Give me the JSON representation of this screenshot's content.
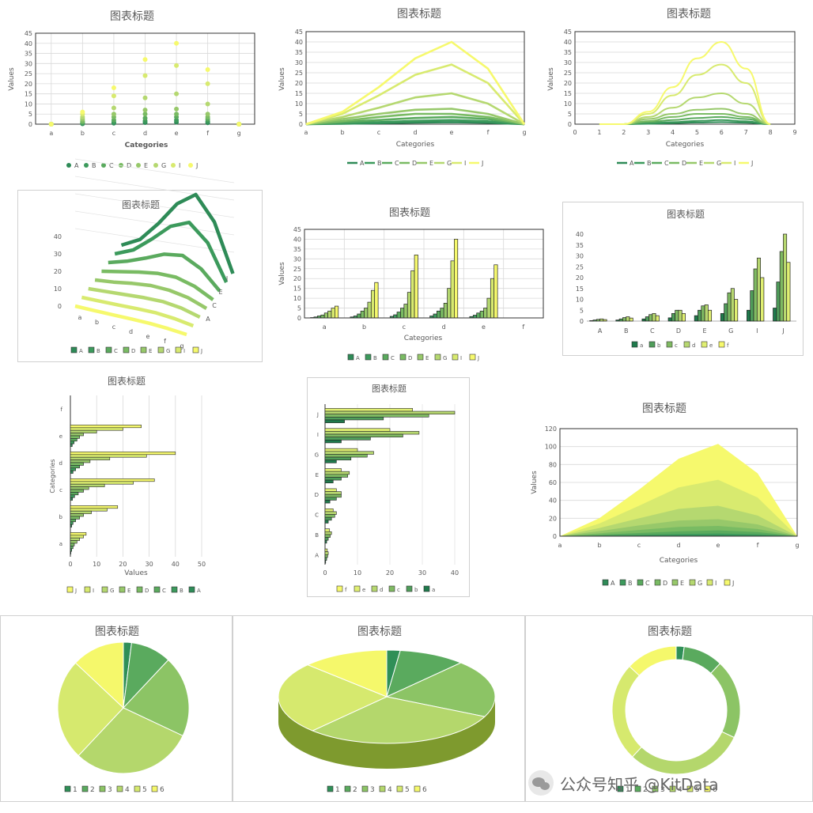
{
  "palette": [
    "#2e8b57",
    "#3c9a5c",
    "#5aaa5e",
    "#79bb63",
    "#97c86a",
    "#b5d870",
    "#d8ea6f",
    "#f6f96d"
  ],
  "pie_palette": [
    "#2f8f57",
    "#5aaa5e",
    "#8cc465",
    "#b4d76c",
    "#d6e96e",
    "#f5f86b"
  ],
  "chart_data": [
    {
      "id": "scatter",
      "type": "scatter",
      "title": "图表标题",
      "xlabel": "Categories",
      "ylabel": "Values",
      "categories": [
        "a",
        "b",
        "c",
        "d",
        "e",
        "f",
        "g"
      ],
      "ylim": [
        0,
        45
      ],
      "yticks": [
        0,
        5,
        10,
        15,
        20,
        25,
        30,
        35,
        40,
        45
      ],
      "legend": [
        "A",
        "B",
        "C",
        "D",
        "E",
        "G",
        "I",
        "J"
      ],
      "series": [
        [
          0,
          0.2,
          0.5,
          0.8,
          1,
          0.7,
          0
        ],
        [
          0,
          0.5,
          1,
          1.6,
          2,
          1.4,
          0
        ],
        [
          0,
          1,
          2,
          3,
          3.5,
          2.5,
          0
        ],
        [
          0,
          1.5,
          3.5,
          5,
          5,
          3.5,
          0
        ],
        [
          0,
          2.5,
          5,
          7,
          7.5,
          5,
          0
        ],
        [
          0,
          3.5,
          8,
          13,
          15,
          10,
          0
        ],
        [
          0,
          5,
          14,
          24,
          29,
          20,
          0
        ],
        [
          0,
          6,
          18,
          32,
          40,
          27,
          0
        ]
      ]
    },
    {
      "id": "line",
      "type": "line",
      "title": "图表标题",
      "xlabel": "Categories",
      "ylabel": "Values",
      "categories": [
        "a",
        "b",
        "c",
        "d",
        "e",
        "f",
        "g"
      ],
      "ylim": [
        0,
        45
      ],
      "yticks": [
        0,
        5,
        10,
        15,
        20,
        25,
        30,
        35,
        40,
        45
      ],
      "legend": [
        "A",
        "B",
        "C",
        "D",
        "E",
        "G",
        "I",
        "J"
      ],
      "series": [
        [
          0,
          0.2,
          0.5,
          0.8,
          1,
          0.7,
          0
        ],
        [
          0,
          0.5,
          1,
          1.6,
          2,
          1.4,
          0
        ],
        [
          0,
          1,
          2,
          3,
          3.5,
          2.5,
          0
        ],
        [
          0,
          1.5,
          3.5,
          5,
          5,
          3.5,
          0
        ],
        [
          0,
          2.5,
          5,
          7,
          7.5,
          5,
          0
        ],
        [
          0,
          3.5,
          8,
          13,
          15,
          10,
          0
        ],
        [
          0,
          5,
          14,
          24,
          29,
          20,
          0
        ],
        [
          0,
          6,
          18,
          32,
          40,
          27,
          0
        ]
      ]
    },
    {
      "id": "smooth",
      "type": "line",
      "title": "图表标题",
      "xlabel": "Categories",
      "ylabel": "Values",
      "x": [
        1,
        2,
        3,
        4,
        5,
        6,
        7,
        8
      ],
      "xticks": [
        "0",
        "1",
        "2",
        "3",
        "4",
        "5",
        "6",
        "7",
        "8",
        "9"
      ],
      "xlim": [
        0,
        9
      ],
      "ylim": [
        0,
        45
      ],
      "yticks": [
        0,
        5,
        10,
        15,
        20,
        25,
        30,
        35,
        40,
        45
      ],
      "legend": [
        "A",
        "B",
        "C",
        "D",
        "E",
        "G",
        "I",
        "J"
      ],
      "series": [
        [
          0,
          0,
          0.2,
          0.5,
          0.8,
          1,
          0.7,
          0
        ],
        [
          0,
          0,
          0.5,
          1,
          1.6,
          2,
          1.4,
          0
        ],
        [
          0,
          0,
          1,
          2,
          3,
          3.5,
          2.5,
          0
        ],
        [
          0,
          0,
          1.5,
          3.5,
          5,
          5,
          3.5,
          0
        ],
        [
          0,
          0,
          2.5,
          5,
          7,
          7.5,
          5,
          0
        ],
        [
          0,
          0,
          3.5,
          8,
          13,
          15,
          10,
          0
        ],
        [
          0,
          0,
          5,
          14,
          24,
          29,
          20,
          0
        ],
        [
          0,
          0,
          6,
          18,
          32,
          40,
          27,
          0
        ]
      ]
    },
    {
      "id": "line3d",
      "type": "line",
      "title": "图表标题",
      "categories": [
        "a",
        "b",
        "c",
        "d",
        "e",
        "f",
        "g"
      ],
      "depth_labels": [
        "A",
        "C",
        "E",
        "I"
      ],
      "zticks": [
        0,
        10,
        20,
        30,
        40
      ],
      "legend": [
        "A",
        "B",
        "C",
        "D",
        "E",
        "G",
        "I",
        "J"
      ],
      "series": [
        [
          0,
          0.2,
          0.5,
          0.8,
          1,
          0.7,
          0
        ],
        [
          0,
          0.5,
          1,
          1.6,
          2,
          1.4,
          0
        ],
        [
          0,
          1,
          2,
          3,
          3.5,
          2.5,
          0
        ],
        [
          0,
          1.5,
          3.5,
          5,
          5,
          3.5,
          0
        ],
        [
          0,
          2.5,
          5,
          7,
          7.5,
          5,
          0
        ],
        [
          0,
          3.5,
          8,
          13,
          15,
          10,
          0
        ],
        [
          0,
          5,
          14,
          24,
          29,
          20,
          0
        ],
        [
          0,
          6,
          18,
          32,
          40,
          27,
          0
        ]
      ]
    },
    {
      "id": "colcat",
      "type": "bar",
      "title": "图表标题",
      "xlabel": "Categories",
      "ylabel": "Values",
      "categories": [
        "a",
        "b",
        "c",
        "d",
        "e",
        "f"
      ],
      "ylim": [
        0,
        45
      ],
      "yticks": [
        0,
        5,
        10,
        15,
        20,
        25,
        30,
        35,
        40,
        45
      ],
      "legend": [
        "A",
        "B",
        "C",
        "D",
        "E",
        "G",
        "I",
        "J"
      ],
      "series": [
        [
          0.2,
          0.5,
          1,
          1.5,
          2.5,
          3.5,
          5,
          6
        ],
        [
          0.5,
          1,
          2,
          3.5,
          5,
          8,
          14,
          18
        ],
        [
          0.8,
          1.6,
          3,
          5,
          7,
          13,
          24,
          32
        ],
        [
          1,
          2,
          3.5,
          5,
          7.5,
          15,
          29,
          40
        ],
        [
          0.7,
          1.4,
          2.5,
          3.5,
          5,
          10,
          20,
          27
        ],
        [
          0,
          0,
          0,
          0,
          0,
          0,
          0,
          0
        ]
      ]
    },
    {
      "id": "colser",
      "type": "bar",
      "title": "图表标题",
      "categories": [
        "A",
        "B",
        "C",
        "D",
        "E",
        "G",
        "I",
        "J"
      ],
      "ylim": [
        0,
        40
      ],
      "yticks": [
        0,
        5,
        10,
        15,
        20,
        25,
        30,
        35,
        40
      ],
      "legend": [
        "a",
        "b",
        "c",
        "d",
        "e",
        "f"
      ],
      "series": [
        [
          0.2,
          0.5,
          1,
          1.5,
          2.5,
          3.5,
          5,
          6
        ],
        [
          0.5,
          1,
          2,
          3.5,
          5,
          8,
          14,
          18
        ],
        [
          0.8,
          1.6,
          3,
          5,
          7,
          13,
          24,
          32
        ],
        [
          1,
          2,
          3.5,
          5,
          7.5,
          15,
          29,
          40
        ],
        [
          0.7,
          1.4,
          2.5,
          3.5,
          5,
          10,
          20,
          27
        ],
        [
          0,
          0,
          0,
          0,
          0,
          0,
          0,
          0
        ]
      ]
    },
    {
      "id": "barcat",
      "type": "bar",
      "title": "图表标题",
      "xlabel": "Values",
      "ylabel": "Categories",
      "categories": [
        "a",
        "b",
        "c",
        "d",
        "e",
        "f"
      ],
      "xlim": [
        0,
        50
      ],
      "xticks": [
        0,
        10,
        20,
        30,
        40,
        50
      ],
      "legend": [
        "J",
        "I",
        "G",
        "E",
        "D",
        "C",
        "B",
        "A"
      ],
      "series": [
        [
          0.2,
          0.5,
          1,
          1.5,
          2.5,
          3.5,
          5,
          6
        ],
        [
          0.5,
          1,
          2,
          3.5,
          5,
          8,
          14,
          18
        ],
        [
          0.8,
          1.6,
          3,
          5,
          7,
          13,
          24,
          32
        ],
        [
          1,
          2,
          3.5,
          5,
          7.5,
          15,
          29,
          40
        ],
        [
          0.7,
          1.4,
          2.5,
          3.5,
          5,
          10,
          20,
          27
        ],
        [
          0,
          0,
          0,
          0,
          0,
          0,
          0,
          0
        ]
      ]
    },
    {
      "id": "barser",
      "type": "bar",
      "title": "图表标题",
      "categories": [
        "A",
        "B",
        "C",
        "D",
        "E",
        "G",
        "I",
        "J"
      ],
      "xlim": [
        0,
        40
      ],
      "xticks": [
        0,
        10,
        20,
        30,
        40
      ],
      "legend": [
        "f",
        "e",
        "d",
        "c",
        "b",
        "a"
      ],
      "series": [
        [
          0.2,
          0.5,
          1,
          1.5,
          2.5,
          3.5,
          5,
          6
        ],
        [
          0.5,
          1,
          2,
          3.5,
          5,
          8,
          14,
          18
        ],
        [
          0.8,
          1.6,
          3,
          5,
          7,
          13,
          24,
          32
        ],
        [
          1,
          2,
          3.5,
          5,
          7.5,
          15,
          29,
          40
        ],
        [
          0.7,
          1.4,
          2.5,
          3.5,
          5,
          10,
          20,
          27
        ],
        [
          0,
          0,
          0,
          0,
          0,
          0,
          0,
          0
        ]
      ]
    },
    {
      "id": "area",
      "type": "area",
      "title": "图表标题",
      "xlabel": "Categories",
      "ylabel": "Values",
      "categories": [
        "a",
        "b",
        "c",
        "d",
        "e",
        "f",
        "g"
      ],
      "ylim": [
        0,
        120
      ],
      "yticks": [
        0,
        20,
        40,
        60,
        80,
        100,
        120
      ],
      "legend": [
        "A",
        "B",
        "C",
        "D",
        "E",
        "G",
        "I",
        "J"
      ],
      "series": [
        [
          0,
          0.2,
          0.5,
          0.8,
          1,
          0.7,
          0
        ],
        [
          0,
          0.5,
          1,
          1.6,
          2,
          1.4,
          0
        ],
        [
          0,
          1,
          2,
          3,
          3.5,
          2.5,
          0
        ],
        [
          0,
          1.5,
          3.5,
          5,
          5,
          3.5,
          0
        ],
        [
          0,
          2.5,
          5,
          7,
          7.5,
          5,
          0
        ],
        [
          0,
          3.5,
          8,
          13,
          15,
          10,
          0
        ],
        [
          0,
          5,
          14,
          24,
          29,
          20,
          0
        ],
        [
          0,
          6,
          18,
          32,
          40,
          27,
          0
        ]
      ]
    },
    {
      "id": "pie",
      "type": "pie",
      "title": "图表标题",
      "labels": [
        "1",
        "2",
        "3",
        "4",
        "5",
        "6"
      ],
      "values": [
        2,
        10,
        20,
        30,
        25,
        13
      ]
    },
    {
      "id": "pie3d",
      "type": "pie",
      "title": "图表标题",
      "labels": [
        "1",
        "2",
        "3",
        "4",
        "5",
        "6"
      ],
      "values": [
        2,
        10,
        20,
        30,
        25,
        13
      ]
    },
    {
      "id": "donut",
      "type": "pie",
      "title": "图表标题",
      "labels": [
        "1",
        "2",
        "3",
        "4",
        "5",
        "6"
      ],
      "values": [
        2,
        10,
        20,
        30,
        25,
        13
      ]
    }
  ],
  "watermark": "公众号知乎 @KitData"
}
